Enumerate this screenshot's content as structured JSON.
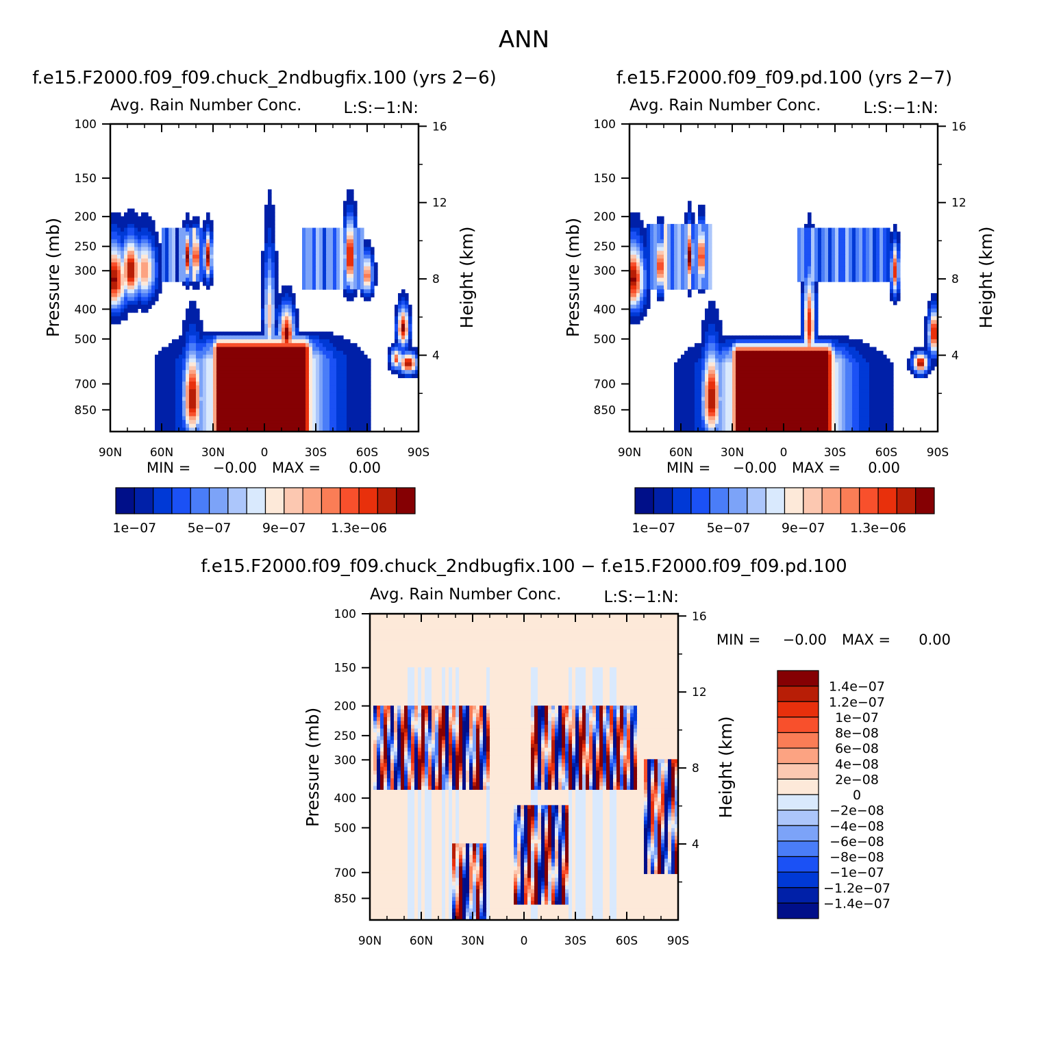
{
  "figure": {
    "title": "ANN",
    "diff_title": "f.e15.F2000.f09_f09.chuck_2ndbugfix.100 − f.e15.F2000.f09_f09.pd.100"
  },
  "colors": {
    "abs_scale": [
      "#000f89",
      "#0020a8",
      "#0039d6",
      "#1b51f5",
      "#4a7df8",
      "#7ca3f8",
      "#acc6fb",
      "#d9e9fd",
      "#fde9d9",
      "#fcc8b1",
      "#fca382",
      "#fa7d56",
      "#f8502c",
      "#e8300c",
      "#b81e06",
      "#850003"
    ],
    "diff_scale": [
      "#000f89",
      "#0020a8",
      "#0039d6",
      "#1b51f5",
      "#4a7df8",
      "#7ca3f8",
      "#acc6fb",
      "#d9e9fd",
      "#fde9d9",
      "#fcc8b1",
      "#fca382",
      "#fa7d56",
      "#f8502c",
      "#e8300c",
      "#b81e06",
      "#850003"
    ]
  },
  "chart_data": [
    {
      "type": "heatmap",
      "id": "left",
      "title": "f.e15.F2000.f09_f09.chuck_2ndbugfix.100 (yrs 2−6)",
      "subtitle_left": "Avg. Rain Number Conc.",
      "subtitle_right": "L:S:−1:N:",
      "xlabel": "",
      "ylabel": "Pressure (mb)",
      "ylabel_right": "Height (km)",
      "x_range": [
        90,
        -90
      ],
      "x_ticks": [
        90,
        60,
        30,
        0,
        -30,
        -60,
        -90
      ],
      "x_tick_labels": [
        "90N",
        "60N",
        "30N",
        "0",
        "30S",
        "60S",
        "90S"
      ],
      "y_range": [
        100,
        1000
      ],
      "y_ticks": [
        100,
        150,
        200,
        250,
        300,
        400,
        500,
        700,
        850
      ],
      "y_tick_labels": [
        "100",
        "150",
        "200",
        "250",
        "300",
        "400",
        "500",
        "700",
        "850"
      ],
      "right_ticks_km": [
        16,
        12,
        8,
        4
      ],
      "right_tick_labels": [
        "16",
        "12",
        "8",
        "4"
      ],
      "min_label": "MIN =",
      "min_value": "−0.00",
      "max_label": "MAX =",
      "max_value": "0.00",
      "colorbar_levels": [
        1e-07,
        2e-07,
        3e-07,
        4e-07,
        5e-07,
        6e-07,
        7e-07,
        8e-07,
        9e-07,
        1e-06,
        1.1e-06,
        1.2e-06,
        1.3e-06,
        1.4e-06,
        1.5e-06
      ],
      "colorbar_labels": [
        "1e−07",
        "5e−07",
        "9e−07",
        "1.3e−06"
      ],
      "features": [
        {
          "kind": "blob",
          "lat": 88,
          "p": 320,
          "w": 7,
          "h": 70,
          "v": 1.0
        },
        {
          "kind": "blob",
          "lat": 78,
          "p": 300,
          "w": 5,
          "h": 60,
          "v": 1.0
        },
        {
          "kind": "blob",
          "lat": 70,
          "p": 300,
          "w": 6,
          "h": 60,
          "v": 0.7
        },
        {
          "kind": "band",
          "lat0": 60,
          "lat1": 35,
          "p0": 220,
          "p1": 330,
          "v": 0.55
        },
        {
          "kind": "blob",
          "lat": 45,
          "p": 270,
          "w": 2,
          "h": 40,
          "v": 1.0
        },
        {
          "kind": "blob",
          "lat": 40,
          "p": 270,
          "w": 2,
          "h": 40,
          "v": 1.0
        },
        {
          "kind": "blob",
          "lat": 33,
          "p": 270,
          "w": 2,
          "h": 40,
          "v": 1.0
        },
        {
          "kind": "blob",
          "lat": -3,
          "p": 420,
          "w": 3,
          "h": 150,
          "v": 0.6
        },
        {
          "kind": "blob",
          "lat": -13,
          "p": 480,
          "w": 4,
          "h": 80,
          "v": 1.0
        },
        {
          "kind": "band",
          "lat0": -22,
          "lat1": -58,
          "p0": 220,
          "p1": 340,
          "v": 0.55
        },
        {
          "kind": "blob",
          "lat": -50,
          "p": 270,
          "w": 3,
          "h": 60,
          "v": 1.0
        },
        {
          "kind": "blob",
          "lat": -60,
          "p": 310,
          "w": 3,
          "h": 40,
          "v": 0.8
        },
        {
          "kind": "blob",
          "lat": -81,
          "p": 460,
          "w": 3,
          "h": 60,
          "v": 1.0
        },
        {
          "kind": "blob",
          "lat": -84,
          "p": 600,
          "w": 5,
          "h": 40,
          "v": 1.0
        },
        {
          "kind": "blob",
          "lat": -77,
          "p": 580,
          "w": 3,
          "h": 40,
          "v": 0.8
        },
        {
          "kind": "blob",
          "lat": 42,
          "p": 780,
          "w": 5,
          "h": 220,
          "v": 1.0
        },
        {
          "kind": "lowbox",
          "lat0": 33,
          "lat1": -30,
          "p0": 500,
          "v": 1.0
        }
      ]
    },
    {
      "type": "heatmap",
      "id": "right",
      "title": "f.e15.F2000.f09_f09.pd.100 (yrs 2−7)",
      "subtitle_left": "Avg. Rain Number Conc.",
      "subtitle_right": "L:S:−1:N:",
      "xlabel": "",
      "ylabel": "Pressure (mb)",
      "ylabel_right": "Height (km)",
      "x_range": [
        90,
        -90
      ],
      "x_ticks": [
        90,
        60,
        30,
        0,
        -30,
        -60,
        -90
      ],
      "x_tick_labels": [
        "90N",
        "60N",
        "30N",
        "0",
        "30S",
        "60S",
        "90S"
      ],
      "y_range": [
        100,
        1000
      ],
      "y_ticks": [
        100,
        150,
        200,
        250,
        300,
        400,
        500,
        700,
        850
      ],
      "y_tick_labels": [
        "100",
        "150",
        "200",
        "250",
        "300",
        "400",
        "500",
        "700",
        "850"
      ],
      "right_ticks_km": [
        16,
        12,
        8,
        4
      ],
      "right_tick_labels": [
        "16",
        "12",
        "8",
        "4"
      ],
      "min_label": "MIN =",
      "min_value": "−0.00",
      "max_label": "MAX =",
      "max_value": "0.00",
      "colorbar_levels": [
        1e-07,
        2e-07,
        3e-07,
        4e-07,
        5e-07,
        6e-07,
        7e-07,
        8e-07,
        9e-07,
        1e-06,
        1.1e-06,
        1.2e-06,
        1.3e-06,
        1.4e-06,
        1.5e-06
      ],
      "colorbar_labels": [
        "1e−07",
        "5e−07",
        "9e−07",
        "1.3e−06"
      ],
      "features": [
        {
          "kind": "blob",
          "lat": 88,
          "p": 320,
          "w": 6,
          "h": 70,
          "v": 1.0
        },
        {
          "kind": "band",
          "lat0": 80,
          "lat1": 42,
          "p0": 210,
          "p1": 340,
          "v": 0.55
        },
        {
          "kind": "blob",
          "lat": 72,
          "p": 290,
          "w": 2,
          "h": 50,
          "v": 1.0
        },
        {
          "kind": "blob",
          "lat": 55,
          "p": 270,
          "w": 2,
          "h": 50,
          "v": 1.0
        },
        {
          "kind": "blob",
          "lat": 48,
          "p": 270,
          "w": 2,
          "h": 50,
          "v": 1.0
        },
        {
          "kind": "blob",
          "lat": -15,
          "p": 450,
          "w": 3,
          "h": 140,
          "v": 0.9
        },
        {
          "kind": "band",
          "lat0": -8,
          "lat1": -62,
          "p0": 220,
          "p1": 330,
          "v": 0.45
        },
        {
          "kind": "blob",
          "lat": -65,
          "p": 300,
          "w": 2,
          "h": 50,
          "v": 0.9
        },
        {
          "kind": "blob",
          "lat": -88,
          "p": 480,
          "w": 3,
          "h": 70,
          "v": 1.0
        },
        {
          "kind": "blob",
          "lat": -80,
          "p": 600,
          "w": 4,
          "h": 40,
          "v": 1.0
        },
        {
          "kind": "blob",
          "lat": 42,
          "p": 780,
          "w": 5,
          "h": 220,
          "v": 1.0
        },
        {
          "kind": "lowbox",
          "lat0": 33,
          "lat1": -32,
          "p0": 520,
          "v": 1.0
        }
      ]
    },
    {
      "type": "heatmap",
      "id": "diff",
      "title": "f.e15.F2000.f09_f09.chuck_2ndbugfix.100 − f.e15.F2000.f09_f09.pd.100",
      "subtitle_left": "Avg. Rain Number Conc.",
      "subtitle_right": "L:S:−1:N:",
      "xlabel": "",
      "ylabel": "Pressure (mb)",
      "ylabel_right": "Height (km)",
      "x_range": [
        90,
        -90
      ],
      "x_ticks": [
        90,
        60,
        30,
        0,
        -30,
        -60,
        -90
      ],
      "x_tick_labels": [
        "90N",
        "60N",
        "30N",
        "0",
        "30S",
        "60S",
        "90S"
      ],
      "y_range": [
        100,
        1000
      ],
      "y_ticks": [
        100,
        150,
        200,
        250,
        300,
        400,
        500,
        700,
        850
      ],
      "y_tick_labels": [
        "100",
        "150",
        "200",
        "250",
        "300",
        "400",
        "500",
        "700",
        "850"
      ],
      "right_ticks_km": [
        16,
        12,
        8,
        4
      ],
      "right_tick_labels": [
        "16",
        "12",
        "8",
        "4"
      ],
      "min_label": "MIN =",
      "min_value": "−0.00",
      "max_label": "MAX =",
      "max_value": "0.00",
      "colorbar_levels": [
        -1.4e-07,
        -1.2e-07,
        -1e-07,
        -8e-08,
        -6e-08,
        -4e-08,
        -2e-08,
        0,
        2e-08,
        4e-08,
        6e-08,
        8e-08,
        1e-07,
        1.2e-07,
        1.4e-07
      ],
      "colorbar_labels": [
        "1.4e−07",
        "1.2e−07",
        "1e−07",
        "8e−08",
        "6e−08",
        "4e−08",
        "2e−08",
        "0",
        "−2e−08",
        "−4e−08",
        "−6e−08",
        "−8e−08",
        "−1e−07",
        "−1.2e−07",
        "−1.4e−07"
      ],
      "features": [
        {
          "kind": "stripes",
          "lat0": 88,
          "lat1": 20,
          "p0": 200,
          "p1": 380,
          "amp": 1.0
        },
        {
          "kind": "stripes",
          "lat0": -5,
          "lat1": -65,
          "p0": 200,
          "p1": 380,
          "amp": 1.0
        },
        {
          "kind": "stripes",
          "lat0": -70,
          "lat1": -90,
          "p0": 300,
          "p1": 700,
          "amp": 1.0
        },
        {
          "kind": "stripes",
          "lat0": 42,
          "lat1": 22,
          "p0": 560,
          "p1": 1000,
          "amp": 1.0
        },
        {
          "kind": "stripes",
          "lat0": 6,
          "lat1": -25,
          "p0": 420,
          "p1": 900,
          "amp": 1.0
        }
      ]
    }
  ]
}
